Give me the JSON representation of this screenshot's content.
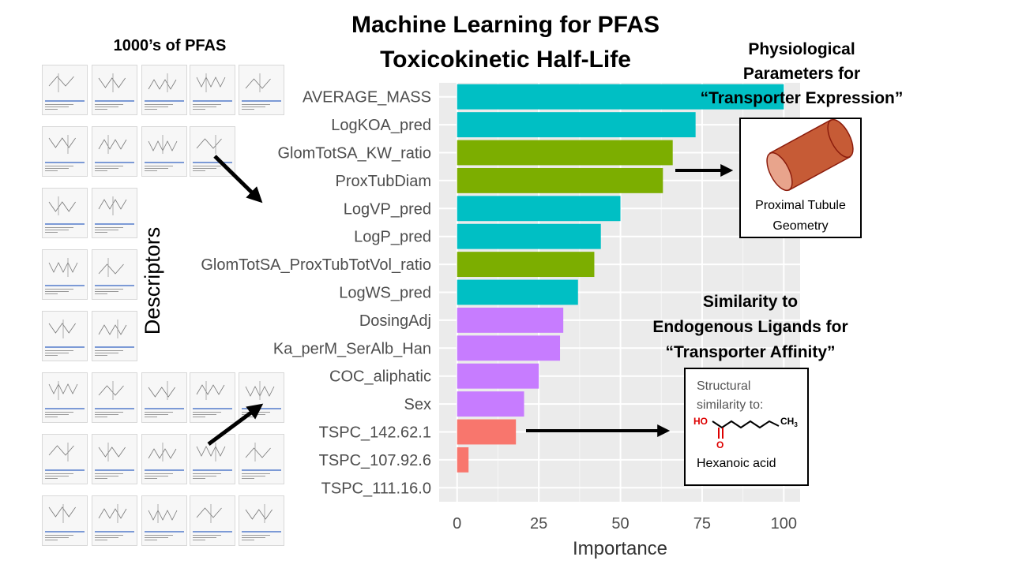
{
  "header": {
    "title_line1": "Machine Learning for PFAS",
    "title_line2": "Toxicokinetic Half-Life"
  },
  "left_panel": {
    "heading": "1000’s of PFAS",
    "descriptors_label": "Descriptors"
  },
  "physiological": {
    "line1": "Physiological",
    "line2": "Parameters for",
    "line3": "“Transporter Expression”",
    "box_line1": "Proximal Tubule",
    "box_line2": "Geometry"
  },
  "similarity": {
    "line1": "Similarity to",
    "line2": "Endogenous Ligands for",
    "line3": "“Transporter Affinity”",
    "box_line1": "Structural",
    "box_line2": "similarity to:",
    "ho_label": "HO",
    "o_label": "O",
    "ch3_label": "CH",
    "ch3_sub": "3",
    "molecule": "Hexanoic acid"
  },
  "colors": {
    "teal": "#00BFC4",
    "olive": "#7CAE00",
    "purple": "#C77CFF",
    "salmon": "#F8766D",
    "panel_bg": "#EBEBEB",
    "grid": "#FFFFFF",
    "tube": "#C65B36",
    "tube_end": "#E8A48C"
  },
  "chart_data": {
    "type": "bar",
    "orientation": "horizontal",
    "categories": [
      "AVERAGE_MASS",
      "LogKOA_pred",
      "GlomTotSA_KW_ratio",
      "ProxTubDiam",
      "LogVP_pred",
      "LogP_pred",
      "GlomTotSA_ProxTubTotVol_ratio",
      "LogWS_pred",
      "DosingAdj",
      "Ka_perM_SerAlb_Han",
      "COC_aliphatic",
      "Sex",
      "TSPC_142.62.1",
      "TSPC_107.92.6",
      "TSPC_111.16.0"
    ],
    "values": [
      100,
      73,
      66,
      63,
      50,
      44,
      42,
      37,
      32.5,
      31.5,
      25,
      20.5,
      18,
      3.5,
      0
    ],
    "bar_colors": [
      "#00BFC4",
      "#00BFC4",
      "#7CAE00",
      "#7CAE00",
      "#00BFC4",
      "#00BFC4",
      "#7CAE00",
      "#00BFC4",
      "#C77CFF",
      "#C77CFF",
      "#C77CFF",
      "#C77CFF",
      "#F8766D",
      "#F8766D",
      "#F8766D"
    ],
    "xlabel": "Importance",
    "xticks": [
      "0",
      "25",
      "50",
      "75",
      "100"
    ],
    "tick_values": [
      0,
      25,
      50,
      75,
      100
    ],
    "xlim": [
      -5.5,
      105
    ],
    "grid": true
  }
}
